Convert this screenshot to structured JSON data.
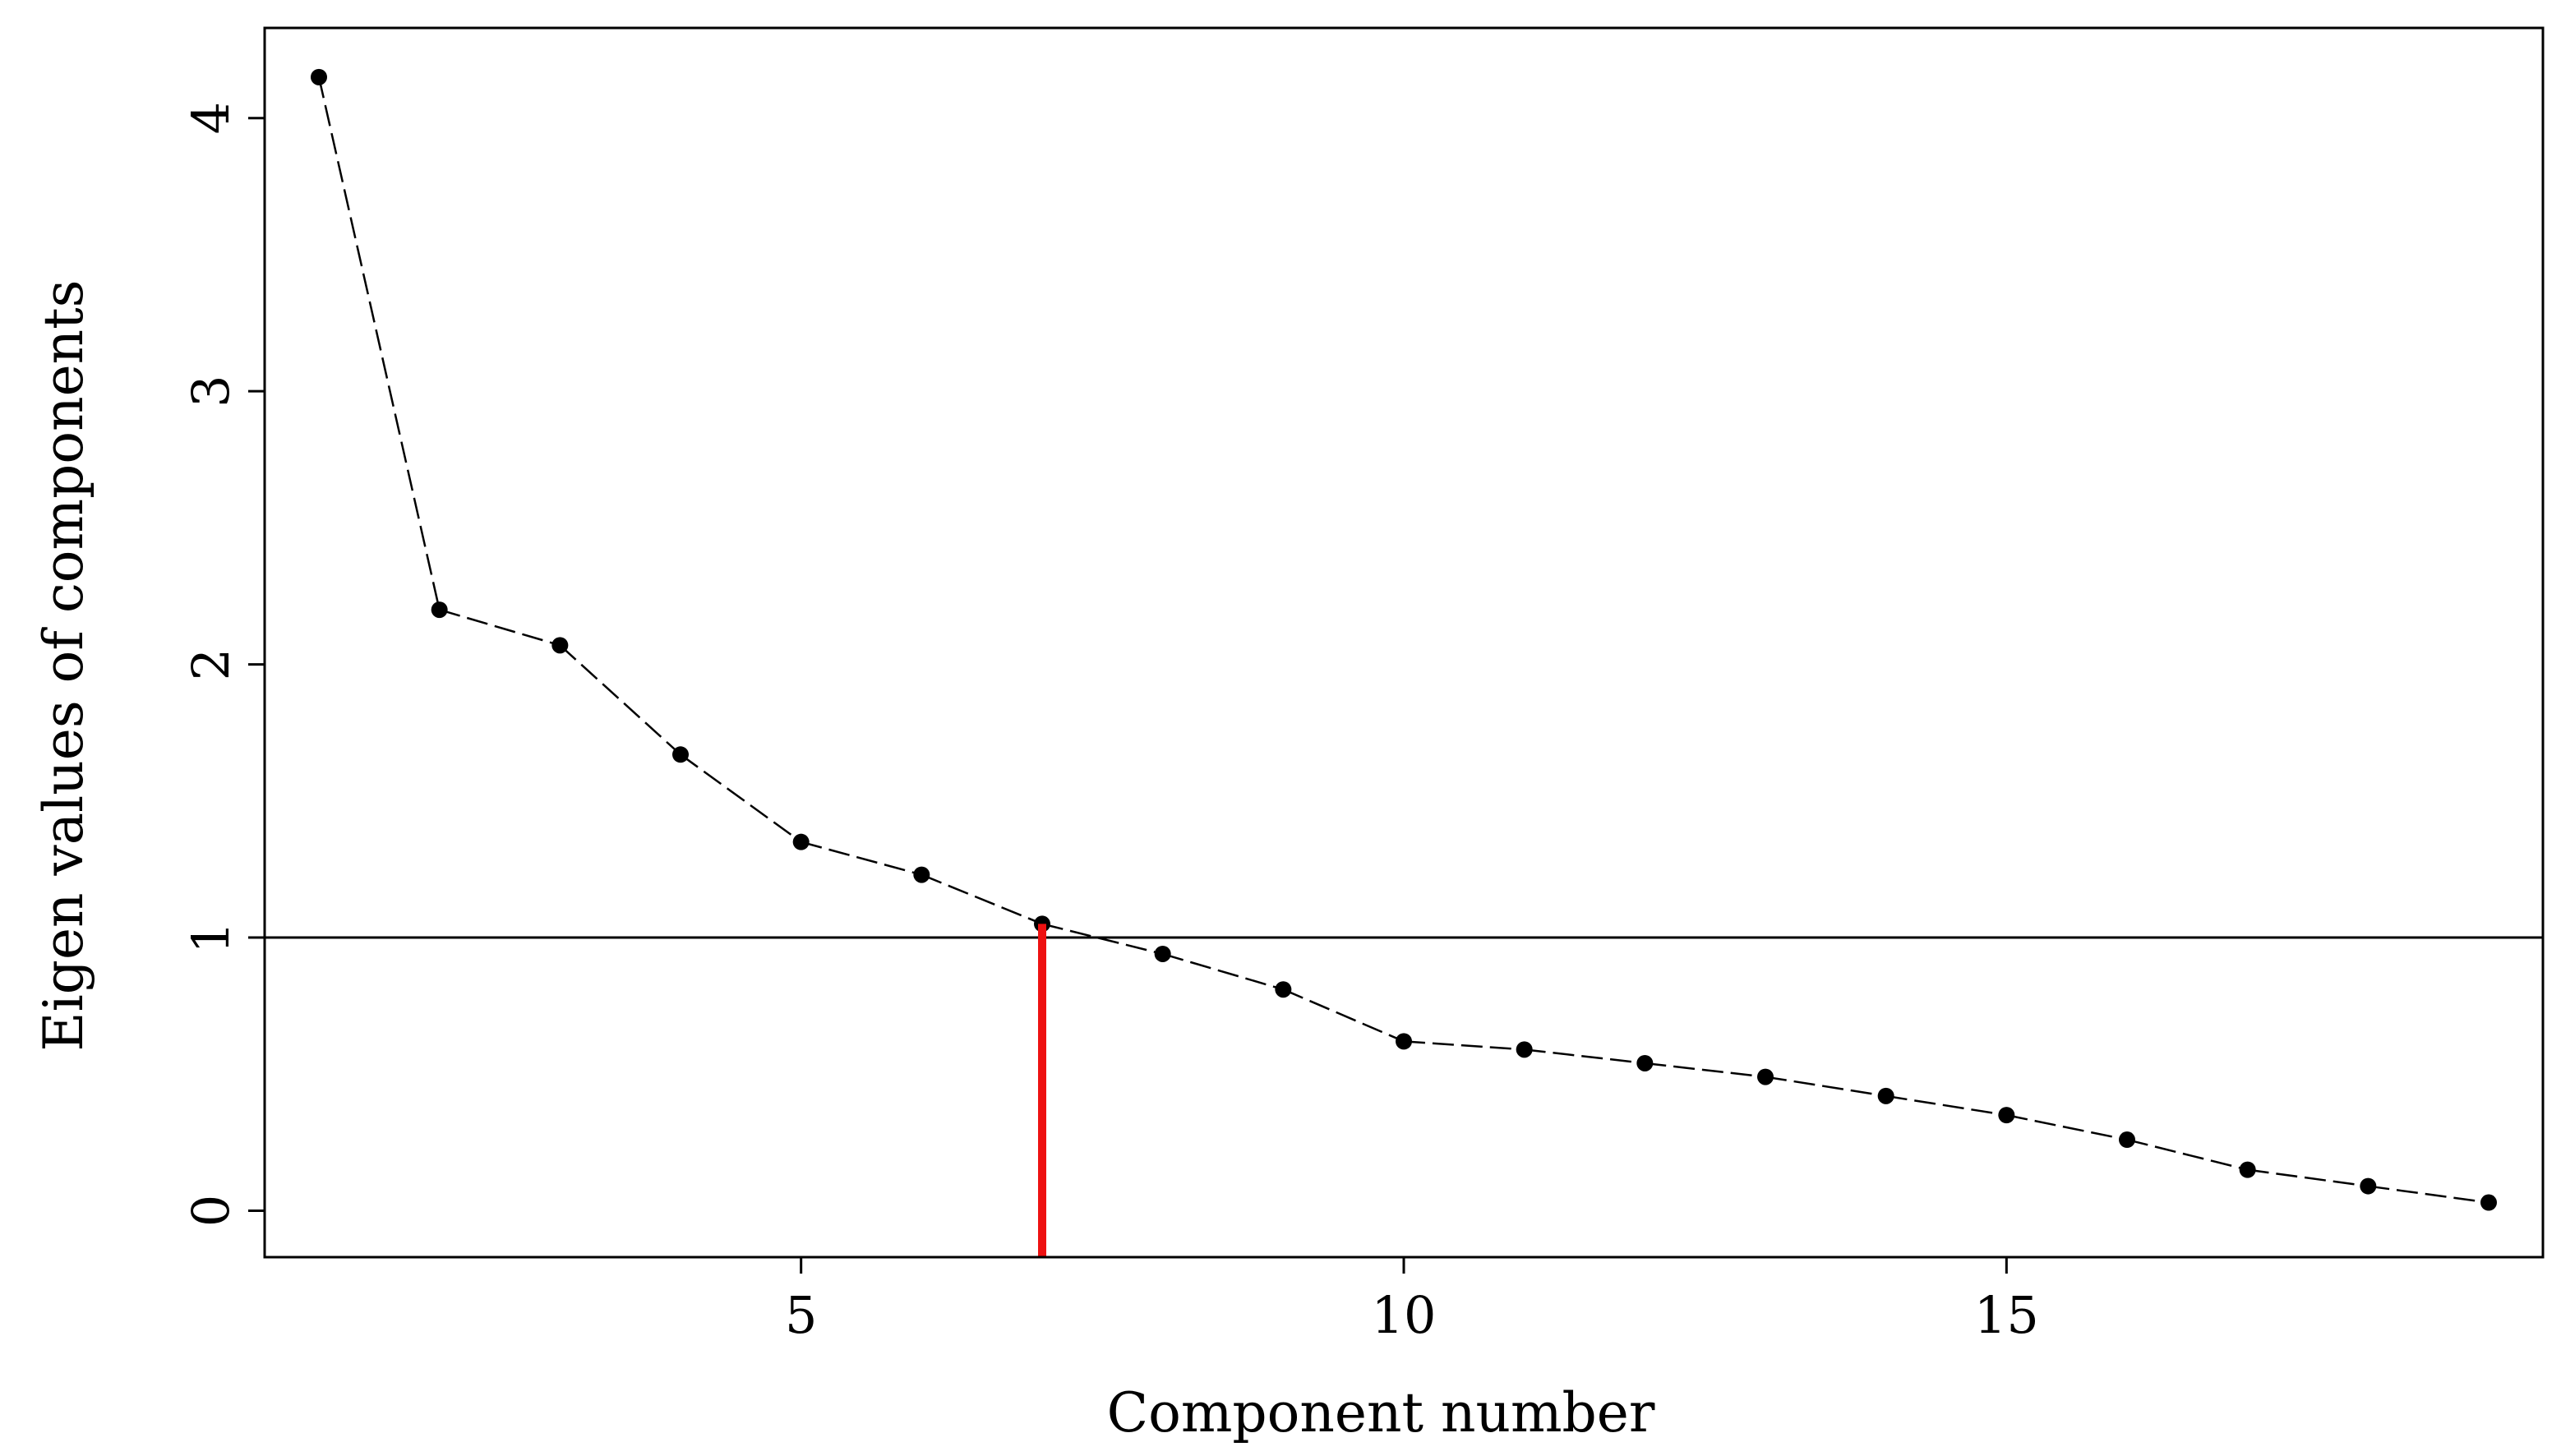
{
  "chart_data": {
    "type": "line",
    "title": "",
    "xlabel": "Component number",
    "ylabel": "Eigen values of components",
    "xlim": [
      0.55,
      19.45
    ],
    "ylim": [
      -0.17,
      4.33
    ],
    "x_ticks": [
      5,
      10,
      15
    ],
    "y_ticks": [
      0,
      1,
      2,
      3,
      4
    ],
    "grid": false,
    "line_style": "dashed",
    "point_marker": "filled-circle",
    "x": [
      1,
      2,
      3,
      4,
      5,
      6,
      7,
      8,
      9,
      10,
      11,
      12,
      13,
      14,
      15,
      16,
      17,
      18,
      19
    ],
    "series": [
      {
        "values": [
          4.15,
          2.2,
          2.07,
          1.67,
          1.35,
          1.23,
          1.05,
          0.94,
          0.81,
          0.62,
          0.59,
          0.54,
          0.49,
          0.42,
          0.35,
          0.26,
          0.15,
          0.09,
          0.03
        ]
      }
    ],
    "reference_line": {
      "y": 1,
      "color": "#000000"
    },
    "cutoff_marker": {
      "x": 7,
      "color": "#ee1111"
    }
  }
}
